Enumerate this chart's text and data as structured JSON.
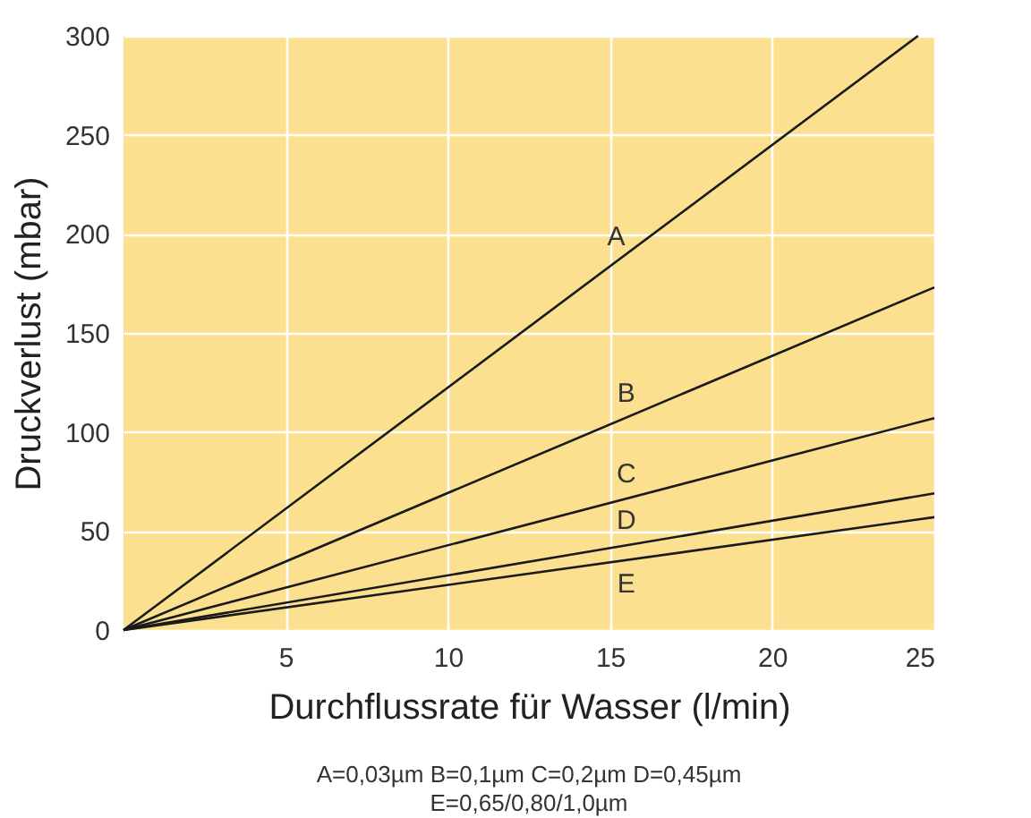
{
  "chart_data": {
    "type": "line",
    "xlabel": "Durchflussrate für Wasser (l/min)",
    "ylabel": "Druckverlust (mbar)",
    "xlim": [
      0,
      25
    ],
    "ylim": [
      0,
      300
    ],
    "xticks": [
      5,
      10,
      15,
      20,
      25
    ],
    "yticks": [
      0,
      50,
      100,
      150,
      200,
      250,
      300
    ],
    "grid": true,
    "legend": false,
    "marker": "none",
    "line_style": "solid",
    "series": [
      {
        "name": "A",
        "color": "#1a1a1a",
        "x": [
          0,
          24.5
        ],
        "values": [
          0,
          300
        ]
      },
      {
        "name": "B",
        "color": "#1a1a1a",
        "x": [
          0,
          25
        ],
        "values": [
          0,
          173
        ]
      },
      {
        "name": "C",
        "color": "#1a1a1a",
        "x": [
          0,
          25
        ],
        "values": [
          0,
          107
        ]
      },
      {
        "name": "D",
        "color": "#1a1a1a",
        "x": [
          0,
          25
        ],
        "values": [
          0,
          69
        ]
      },
      {
        "name": "E",
        "color": "#1a1a1a",
        "x": [
          0,
          25
        ],
        "values": [
          0,
          57
        ]
      }
    ],
    "annotations": [
      "A=0,03µm B=0,1µm C=0,2µm D=0,45µm",
      "E=0,65/0,80/1,0µm"
    ]
  }
}
